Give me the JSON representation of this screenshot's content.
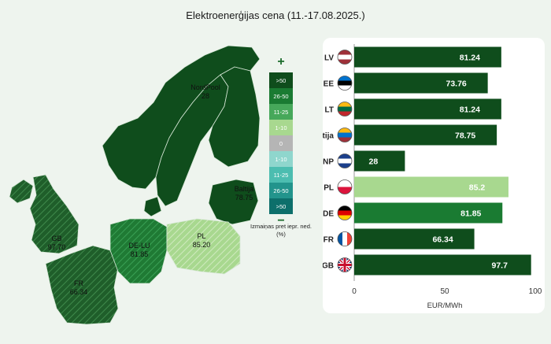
{
  "title": "Elektroenerģijas cena (11.-17.08.2025.)",
  "map": {
    "labels": [
      {
        "id": "nordpool",
        "text": "NordPool\n28"
      },
      {
        "id": "baltija",
        "text": "Baltija\n78.75"
      },
      {
        "id": "gb",
        "text": "GB\n97.70"
      },
      {
        "id": "fr",
        "text": "FR\n66.34"
      },
      {
        "id": "de",
        "text": "DE-LU\n81.85"
      },
      {
        "id": "pl",
        "text": "PL\n85.20"
      }
    ]
  },
  "legend": {
    "plus": "+",
    "minus": "−",
    "items": [
      {
        "label": ">50",
        "color": "#0f4d1c"
      },
      {
        "label": "26-50",
        "color": "#1a7b32"
      },
      {
        "label": "11-25",
        "color": "#46a85a"
      },
      {
        "label": "1-10",
        "color": "#a8d88f"
      },
      {
        "label": "0",
        "color": "#b5b5b5"
      },
      {
        "label": "1-10",
        "color": "#8fd6cd"
      },
      {
        "label": "11-25",
        "color": "#4cbdb0"
      },
      {
        "label": "26-50",
        "color": "#22948c"
      },
      {
        "label": ">50",
        "color": "#0d6f6b"
      }
    ],
    "caption": "Izmaiņas pret iepr. ned. (%)"
  },
  "chart_data": {
    "type": "bar",
    "orientation": "horizontal",
    "categories": [
      "LV",
      "EE",
      "LT",
      "Baltija",
      "NP",
      "PL",
      "DE",
      "FR",
      "GB"
    ],
    "values": [
      81.24,
      73.76,
      81.24,
      78.75,
      28,
      85.2,
      81.85,
      66.34,
      97.7
    ],
    "value_labels": [
      "81.24",
      "73.76",
      "81.24",
      "78.75",
      "28",
      "85.2",
      "81.85",
      "66.34",
      "97.7"
    ],
    "bar_colors": [
      "#0f4d1c",
      "#0f4d1c",
      "#0f4d1c",
      "#0f4d1c",
      "#0f4d1c",
      "#a8d88f",
      "#1a7b32",
      "#0f4d1c",
      "#0f4d1c"
    ],
    "xlabel": "EUR/MWh",
    "xlim": [
      0,
      100
    ],
    "xticks": [
      0,
      50,
      100
    ]
  },
  "colors": {
    "dark": "#0f4d1c",
    "medium": "#1a7b32",
    "light": "#a8d88f",
    "neutral_land": "#0f4d1c"
  }
}
